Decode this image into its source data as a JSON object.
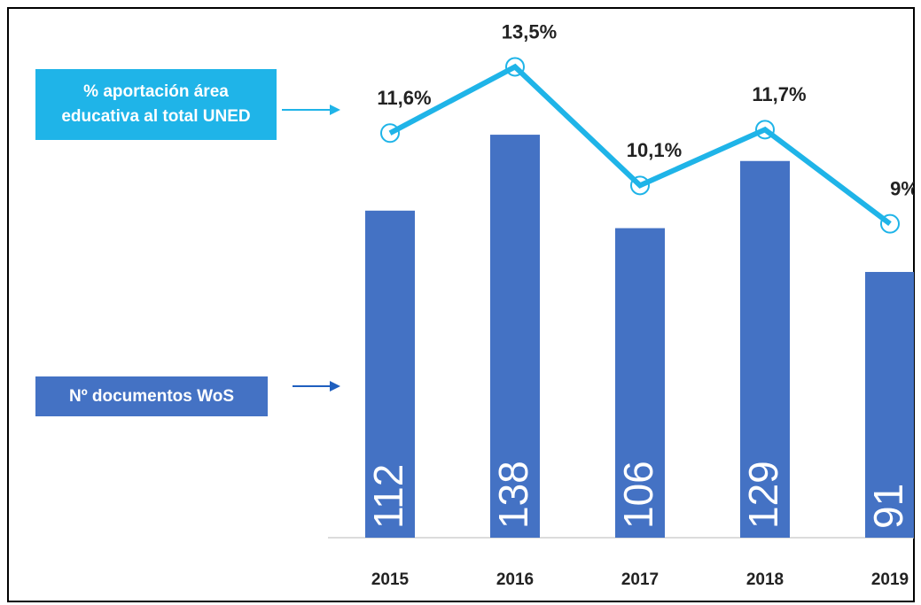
{
  "chart_data": {
    "type": "bar",
    "categories": [
      "2015",
      "2016",
      "2017",
      "2018",
      "2019"
    ],
    "series": [
      {
        "name": "Nº documentos WoS",
        "type": "bar",
        "color": "#4472c4",
        "values": [
          112,
          138,
          106,
          129,
          91
        ]
      },
      {
        "name": "% aportación área educativa al total UNED",
        "type": "line",
        "axis": "y2",
        "color": "#1fb4e8",
        "values": [
          11.6,
          13.5,
          10.1,
          11.7,
          9
        ],
        "value_labels": [
          "11,6%",
          "13,5%",
          "10,1%",
          "11,7%",
          "9%"
        ]
      }
    ],
    "ylim": [
      0,
      172
    ],
    "y2lim": [
      0,
      14.4
    ]
  }
}
